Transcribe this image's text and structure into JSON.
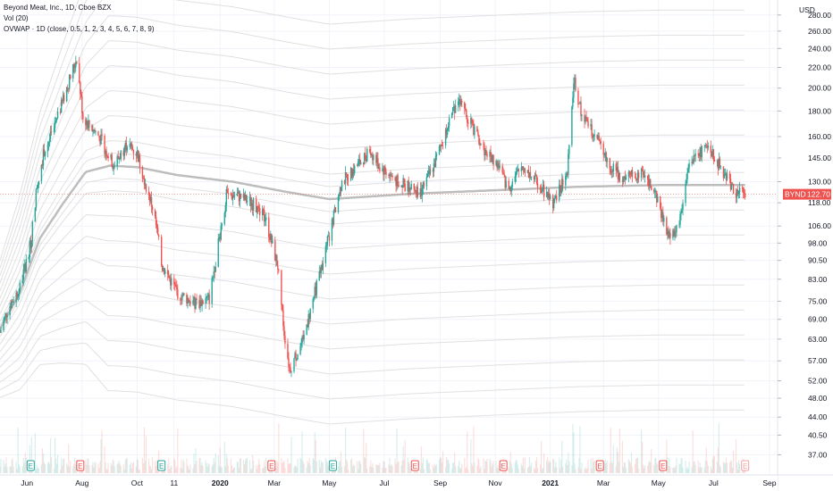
{
  "legend": {
    "line1": "Beyond Meat, Inc., 1D, Cboe BZX",
    "line2": "Vol (20)",
    "line3": "OVWAP · 1D (close, 0.5, 1, 2, 3, 4, 5, 6, 7, 8, 9)"
  },
  "currency": "USD",
  "price_tag": {
    "symbol": "BYND",
    "price": "122.70",
    "value": 122.7,
    "color": "#ef5350"
  },
  "colors": {
    "up": "#26a69a",
    "down": "#ef5350",
    "vwap": "#bdbdbd",
    "band": "#e0e0e0",
    "earn_green": "#26a69a",
    "earn_red": "#ef5350"
  },
  "earnings_markers": [
    {
      "label": "E",
      "date": "2019-06-05",
      "kind": "green"
    },
    {
      "label": "E",
      "date": "2019-07-30",
      "kind": "red"
    },
    {
      "label": "E",
      "date": "2019-10-28",
      "kind": "green"
    },
    {
      "label": "E",
      "date": "2020-02-27",
      "kind": "red"
    },
    {
      "label": "E",
      "date": "2020-05-05",
      "kind": "green"
    },
    {
      "label": "E",
      "date": "2020-08-04",
      "kind": "red"
    },
    {
      "label": "E",
      "date": "2020-11-10",
      "kind": "red"
    },
    {
      "label": "E",
      "date": "2021-02-25",
      "kind": "red"
    },
    {
      "label": "E",
      "date": "2021-05-06",
      "kind": "red"
    },
    {
      "label": "E",
      "date": "2021-08-05",
      "kind": "future"
    }
  ],
  "chart_data": {
    "type": "candlestick",
    "symbol": "BYND",
    "interval": "1D",
    "y_scale": "log",
    "ylim": [
      34,
      300
    ],
    "y_ticks": [
      "37.00",
      "40.50",
      "44.00",
      "48.00",
      "52.00",
      "57.00",
      "63.00",
      "69.00",
      "75.00",
      "83.00",
      "90.50",
      "98.00",
      "106.00",
      "118.00",
      "130.00",
      "145.00",
      "160.00",
      "180.00",
      "200.00",
      "220.00",
      "240.00",
      "260.00",
      "280.00"
    ],
    "x_ticks": [
      {
        "label": "Jun",
        "date": "2019-06-01"
      },
      {
        "label": "Aug",
        "date": "2019-08-01"
      },
      {
        "label": "Oct",
        "date": "2019-10-01"
      },
      {
        "label": "11",
        "date": "2019-11-11"
      },
      {
        "label": "2020",
        "date": "2020-01-01"
      },
      {
        "label": "Mar",
        "date": "2020-03-01"
      },
      {
        "label": "May",
        "date": "2020-05-01"
      },
      {
        "label": "Jul",
        "date": "2020-07-01"
      },
      {
        "label": "Sep",
        "date": "2020-09-01"
      },
      {
        "label": "Nov",
        "date": "2020-11-01"
      },
      {
        "label": "2021",
        "date": "2021-01-01"
      },
      {
        "label": "Mar",
        "date": "2021-03-01"
      },
      {
        "label": "May",
        "date": "2021-05-01"
      },
      {
        "label": "Jul",
        "date": "2021-07-01"
      },
      {
        "label": "Sep",
        "date": "2021-09-01"
      }
    ],
    "x_range": [
      "2019-05-02",
      "2021-09-10"
    ],
    "price_path": [
      {
        "date": "2019-05-02",
        "close": 65
      },
      {
        "date": "2019-05-10",
        "close": 72
      },
      {
        "date": "2019-05-24",
        "close": 80
      },
      {
        "date": "2019-06-05",
        "close": 98
      },
      {
        "date": "2019-06-12",
        "close": 128
      },
      {
        "date": "2019-06-20",
        "close": 150
      },
      {
        "date": "2019-07-01",
        "close": 165
      },
      {
        "date": "2019-07-15",
        "close": 200
      },
      {
        "date": "2019-07-26",
        "close": 230
      },
      {
        "date": "2019-08-02",
        "close": 175
      },
      {
        "date": "2019-08-20",
        "close": 160
      },
      {
        "date": "2019-09-05",
        "close": 140
      },
      {
        "date": "2019-09-20",
        "close": 155
      },
      {
        "date": "2019-10-01",
        "close": 148
      },
      {
        "date": "2019-10-10",
        "close": 130
      },
      {
        "date": "2019-10-20",
        "close": 112
      },
      {
        "date": "2019-10-29",
        "close": 88
      },
      {
        "date": "2019-11-15",
        "close": 78
      },
      {
        "date": "2019-12-05",
        "close": 74
      },
      {
        "date": "2019-12-20",
        "close": 76
      },
      {
        "date": "2020-01-08",
        "close": 122
      },
      {
        "date": "2020-01-20",
        "close": 122
      },
      {
        "date": "2020-02-05",
        "close": 118
      },
      {
        "date": "2020-02-20",
        "close": 110
      },
      {
        "date": "2020-03-05",
        "close": 88
      },
      {
        "date": "2020-03-12",
        "close": 65
      },
      {
        "date": "2020-03-18",
        "close": 55
      },
      {
        "date": "2020-04-01",
        "close": 62
      },
      {
        "date": "2020-04-15",
        "close": 78
      },
      {
        "date": "2020-04-30",
        "close": 100
      },
      {
        "date": "2020-05-15",
        "close": 130
      },
      {
        "date": "2020-06-01",
        "close": 140
      },
      {
        "date": "2020-06-15",
        "close": 150
      },
      {
        "date": "2020-06-25",
        "close": 140
      },
      {
        "date": "2020-07-15",
        "close": 130
      },
      {
        "date": "2020-08-10",
        "close": 124
      },
      {
        "date": "2020-08-25",
        "close": 140
      },
      {
        "date": "2020-09-05",
        "close": 160
      },
      {
        "date": "2020-09-20",
        "close": 190
      },
      {
        "date": "2020-10-05",
        "close": 170
      },
      {
        "date": "2020-10-20",
        "close": 150
      },
      {
        "date": "2020-11-05",
        "close": 140
      },
      {
        "date": "2020-11-15",
        "close": 125
      },
      {
        "date": "2020-12-01",
        "close": 140
      },
      {
        "date": "2020-12-20",
        "close": 128
      },
      {
        "date": "2021-01-05",
        "close": 118
      },
      {
        "date": "2021-01-20",
        "close": 135
      },
      {
        "date": "2021-01-27",
        "close": 210
      },
      {
        "date": "2021-02-05",
        "close": 175
      },
      {
        "date": "2021-02-20",
        "close": 160
      },
      {
        "date": "2021-03-10",
        "close": 138
      },
      {
        "date": "2021-03-25",
        "close": 132
      },
      {
        "date": "2021-04-10",
        "close": 135
      },
      {
        "date": "2021-04-25",
        "close": 128
      },
      {
        "date": "2021-05-07",
        "close": 108
      },
      {
        "date": "2021-05-15",
        "close": 100
      },
      {
        "date": "2021-05-25",
        "close": 110
      },
      {
        "date": "2021-06-05",
        "close": 145
      },
      {
        "date": "2021-06-20",
        "close": 150
      },
      {
        "date": "2021-07-01",
        "close": 148
      },
      {
        "date": "2021-07-12",
        "close": 135
      },
      {
        "date": "2021-07-25",
        "close": 125
      },
      {
        "date": "2021-08-05",
        "close": 122.7
      }
    ],
    "ovwap_line": [
      {
        "date": "2019-05-02",
        "value": 66
      },
      {
        "date": "2019-05-24",
        "value": 78
      },
      {
        "date": "2019-06-15",
        "value": 100
      },
      {
        "date": "2019-07-10",
        "value": 117
      },
      {
        "date": "2019-08-05",
        "value": 136
      },
      {
        "date": "2019-09-01",
        "value": 140
      },
      {
        "date": "2019-10-01",
        "value": 139
      },
      {
        "date": "2019-11-15",
        "value": 134
      },
      {
        "date": "2020-01-15",
        "value": 130
      },
      {
        "date": "2020-03-15",
        "value": 124
      },
      {
        "date": "2020-05-01",
        "value": 120
      },
      {
        "date": "2020-08-01",
        "value": 123
      },
      {
        "date": "2020-11-01",
        "value": 125
      },
      {
        "date": "2021-02-01",
        "value": 127
      },
      {
        "date": "2021-05-01",
        "value": 128
      },
      {
        "date": "2021-08-05",
        "value": 128
      }
    ],
    "ovwap_bands_multipliers": [
      0.5,
      1,
      2,
      3,
      4,
      5,
      6,
      7,
      8,
      9
    ]
  }
}
